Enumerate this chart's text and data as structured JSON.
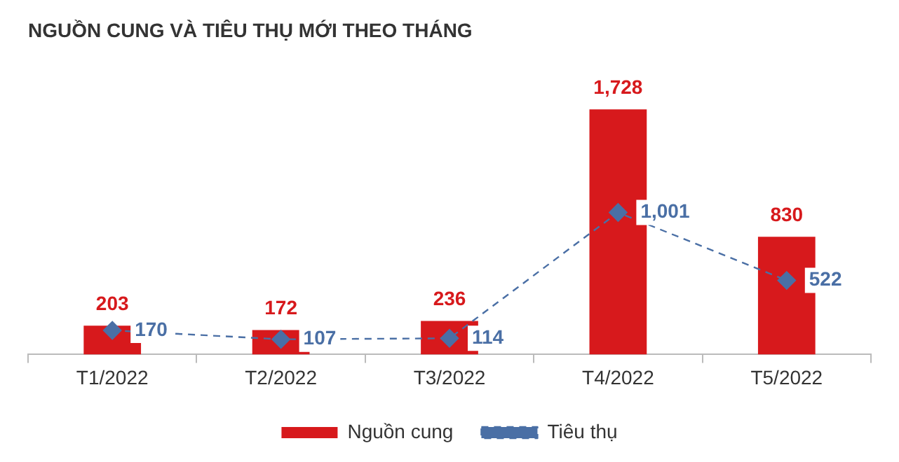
{
  "chart_data": {
    "type": "bar",
    "title": "NGUỒN CUNG VÀ TIÊU THỤ MỚI THEO THÁNG",
    "categories": [
      "T1/2022",
      "T2/2022",
      "T3/2022",
      "T4/2022",
      "T5/2022"
    ],
    "series": [
      {
        "name": "Nguồn cung",
        "color": "#d7191c",
        "values": [
          203,
          172,
          236,
          1728,
          830
        ],
        "value_labels": [
          "203",
          "172",
          "236",
          "1,728",
          "830"
        ]
      },
      {
        "name": "Tiêu thụ",
        "type": "line",
        "color": "#4a6fa5",
        "values": [
          170,
          107,
          114,
          1001,
          522
        ],
        "value_labels": [
          "170",
          "107",
          "114",
          "1,001",
          "522"
        ]
      }
    ],
    "legend": "bottom",
    "grid": false,
    "tick_labels": "x",
    "marker": "diamond",
    "line_style": "dashed"
  }
}
